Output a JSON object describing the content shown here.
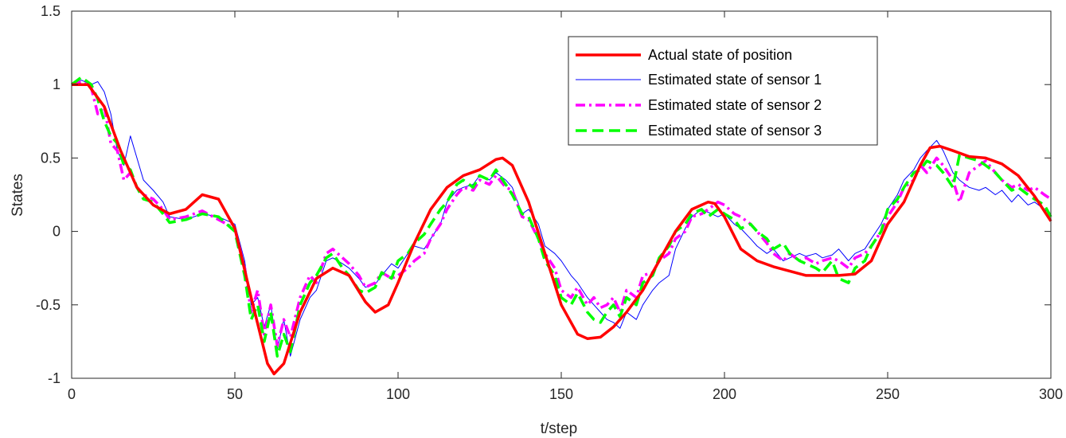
{
  "chart_data": {
    "type": "line",
    "title": "",
    "xlabel": "t/step",
    "ylabel": "States",
    "xlim": [
      0,
      300
    ],
    "ylim": [
      -1,
      1.5
    ],
    "xticks": [
      0,
      50,
      100,
      150,
      200,
      250,
      300
    ],
    "xtick_labels": [
      "0",
      "50",
      "100",
      "150",
      "200",
      "250",
      "300"
    ],
    "yticks": [
      -1,
      -0.5,
      0,
      0.5,
      1,
      1.5
    ],
    "ytick_labels": [
      "-1",
      "-0.5",
      "0",
      "0.5",
      "1",
      "1.5"
    ],
    "grid": false,
    "legend_position": "top-right",
    "series": [
      {
        "name": "Actual state of position",
        "color": "#ff0000",
        "style": "solid-thick",
        "x": [
          0,
          5,
          10,
          15,
          20,
          25,
          30,
          35,
          40,
          45,
          50,
          55,
          60,
          62,
          65,
          70,
          75,
          80,
          85,
          90,
          93,
          97,
          100,
          105,
          110,
          115,
          120,
          125,
          130,
          132,
          135,
          140,
          145,
          150,
          155,
          158,
          162,
          166,
          170,
          175,
          180,
          185,
          190,
          195,
          197,
          200,
          205,
          210,
          215,
          220,
          225,
          230,
          235,
          240,
          245,
          250,
          255,
          260,
          263,
          266,
          270,
          275,
          280,
          285,
          290,
          295,
          300
        ],
        "values": [
          1.0,
          1.0,
          0.85,
          0.55,
          0.3,
          0.18,
          0.12,
          0.15,
          0.25,
          0.22,
          0.02,
          -0.45,
          -0.9,
          -0.97,
          -0.9,
          -0.55,
          -0.32,
          -0.25,
          -0.3,
          -0.48,
          -0.55,
          -0.5,
          -0.35,
          -0.08,
          0.15,
          0.3,
          0.38,
          0.42,
          0.49,
          0.5,
          0.45,
          0.2,
          -0.15,
          -0.5,
          -0.7,
          -0.73,
          -0.72,
          -0.65,
          -0.55,
          -0.4,
          -0.2,
          0.0,
          0.15,
          0.2,
          0.19,
          0.1,
          -0.12,
          -0.2,
          -0.24,
          -0.27,
          -0.3,
          -0.3,
          -0.3,
          -0.29,
          -0.2,
          0.05,
          0.2,
          0.45,
          0.57,
          0.58,
          0.55,
          0.51,
          0.5,
          0.46,
          0.38,
          0.24,
          0.07
        ]
      },
      {
        "name": "Estimated state of sensor 1",
        "color": "#0000ff",
        "style": "solid-thin",
        "x": [
          0,
          3,
          6,
          8,
          10,
          12,
          14,
          16,
          18,
          20,
          22,
          25,
          28,
          30,
          35,
          40,
          45,
          50,
          53,
          55,
          57,
          59,
          61,
          63,
          65,
          67,
          70,
          73,
          75,
          78,
          80,
          83,
          85,
          88,
          90,
          93,
          95,
          98,
          100,
          103,
          105,
          108,
          110,
          113,
          115,
          118,
          120,
          123,
          125,
          128,
          130,
          133,
          135,
          138,
          140,
          143,
          145,
          148,
          150,
          153,
          155,
          158,
          160,
          162,
          164,
          166,
          168,
          170,
          173,
          175,
          178,
          180,
          183,
          185,
          188,
          190,
          193,
          195,
          198,
          200,
          203,
          205,
          208,
          210,
          213,
          215,
          218,
          220,
          223,
          225,
          228,
          230,
          233,
          235,
          238,
          240,
          243,
          245,
          248,
          250,
          253,
          255,
          258,
          260,
          262,
          265,
          267,
          270,
          272,
          275,
          278,
          280,
          283,
          285,
          288,
          290,
          293,
          295,
          298,
          300
        ],
        "values": [
          1.0,
          1.03,
          1.0,
          1.02,
          0.95,
          0.8,
          0.55,
          0.45,
          0.65,
          0.5,
          0.35,
          0.28,
          0.2,
          0.1,
          0.08,
          0.12,
          0.1,
          0.05,
          -0.2,
          -0.5,
          -0.45,
          -0.65,
          -0.5,
          -0.8,
          -0.6,
          -0.85,
          -0.6,
          -0.45,
          -0.4,
          -0.2,
          -0.18,
          -0.22,
          -0.25,
          -0.32,
          -0.38,
          -0.36,
          -0.3,
          -0.22,
          -0.25,
          -0.15,
          -0.1,
          -0.12,
          -0.05,
          0.05,
          0.2,
          0.28,
          0.3,
          0.32,
          0.38,
          0.35,
          0.4,
          0.35,
          0.3,
          0.12,
          0.15,
          0.05,
          -0.1,
          -0.15,
          -0.2,
          -0.3,
          -0.35,
          -0.45,
          -0.5,
          -0.55,
          -0.6,
          -0.62,
          -0.66,
          -0.55,
          -0.6,
          -0.5,
          -0.4,
          -0.35,
          -0.3,
          -0.12,
          0.02,
          0.1,
          0.15,
          0.13,
          0.1,
          0.12,
          0.05,
          0.02,
          -0.05,
          -0.1,
          -0.15,
          -0.12,
          -0.2,
          -0.18,
          -0.15,
          -0.17,
          -0.15,
          -0.18,
          -0.16,
          -0.12,
          -0.2,
          -0.15,
          -0.12,
          -0.05,
          0.05,
          0.15,
          0.25,
          0.35,
          0.42,
          0.5,
          0.55,
          0.62,
          0.55,
          0.4,
          0.35,
          0.3,
          0.28,
          0.3,
          0.25,
          0.28,
          0.2,
          0.25,
          0.18,
          0.2,
          0.15,
          0.12
        ]
      },
      {
        "name": "Estimated state of sensor 2",
        "color": "#ff00ff",
        "style": "dash-dot",
        "x": [
          0,
          3,
          6,
          8,
          10,
          12,
          14,
          16,
          18,
          20,
          22,
          25,
          28,
          30,
          35,
          40,
          45,
          50,
          53,
          55,
          57,
          59,
          61,
          63,
          65,
          67,
          70,
          73,
          75,
          78,
          80,
          83,
          85,
          88,
          90,
          93,
          95,
          98,
          100,
          103,
          105,
          108,
          110,
          113,
          115,
          118,
          120,
          123,
          125,
          128,
          130,
          133,
          135,
          138,
          140,
          143,
          145,
          148,
          150,
          153,
          155,
          158,
          160,
          162,
          164,
          166,
          168,
          170,
          173,
          175,
          178,
          180,
          183,
          185,
          188,
          190,
          193,
          195,
          198,
          200,
          203,
          205,
          208,
          210,
          213,
          215,
          218,
          220,
          223,
          225,
          228,
          230,
          233,
          235,
          238,
          240,
          243,
          245,
          248,
          250,
          253,
          255,
          258,
          260,
          262,
          265,
          267,
          270,
          272,
          275,
          278,
          280,
          283,
          285,
          288,
          290,
          293,
          295,
          298,
          300
        ],
        "values": [
          1.0,
          1.02,
          0.98,
          0.8,
          0.85,
          0.6,
          0.55,
          0.35,
          0.4,
          0.3,
          0.25,
          0.22,
          0.15,
          0.08,
          0.1,
          0.14,
          0.08,
          0.02,
          -0.25,
          -0.55,
          -0.4,
          -0.7,
          -0.5,
          -0.78,
          -0.6,
          -0.72,
          -0.45,
          -0.3,
          -0.35,
          -0.15,
          -0.12,
          -0.18,
          -0.22,
          -0.3,
          -0.38,
          -0.35,
          -0.28,
          -0.32,
          -0.3,
          -0.25,
          -0.2,
          -0.15,
          -0.05,
          0.05,
          0.15,
          0.25,
          0.3,
          0.28,
          0.35,
          0.32,
          0.38,
          0.3,
          0.28,
          0.1,
          0.08,
          -0.05,
          -0.15,
          -0.25,
          -0.4,
          -0.45,
          -0.38,
          -0.5,
          -0.45,
          -0.52,
          -0.5,
          -0.45,
          -0.55,
          -0.4,
          -0.45,
          -0.3,
          -0.28,
          -0.2,
          -0.15,
          -0.05,
          0.0,
          0.1,
          0.12,
          0.15,
          0.2,
          0.18,
          0.12,
          0.1,
          0.05,
          0.0,
          -0.08,
          -0.15,
          -0.2,
          -0.15,
          -0.2,
          -0.18,
          -0.22,
          -0.2,
          -0.18,
          -0.2,
          -0.25,
          -0.18,
          -0.15,
          -0.1,
          0.0,
          0.1,
          0.2,
          0.3,
          0.35,
          0.45,
          0.4,
          0.5,
          0.45,
          0.35,
          0.2,
          0.4,
          0.45,
          0.48,
          0.4,
          0.35,
          0.3,
          0.32,
          0.28,
          0.3,
          0.25,
          0.22
        ]
      },
      {
        "name": "Estimated state of sensor 3",
        "color": "#00ff00",
        "style": "dash",
        "x": [
          0,
          3,
          6,
          8,
          10,
          12,
          14,
          16,
          18,
          20,
          22,
          25,
          28,
          30,
          35,
          40,
          45,
          50,
          53,
          55,
          57,
          59,
          61,
          63,
          65,
          67,
          70,
          73,
          75,
          78,
          80,
          83,
          85,
          88,
          90,
          93,
          95,
          98,
          100,
          103,
          105,
          108,
          110,
          113,
          115,
          118,
          120,
          123,
          125,
          128,
          130,
          133,
          135,
          138,
          140,
          143,
          145,
          148,
          150,
          153,
          155,
          158,
          160,
          162,
          164,
          166,
          168,
          170,
          173,
          175,
          178,
          180,
          183,
          185,
          188,
          190,
          193,
          195,
          198,
          200,
          203,
          205,
          208,
          210,
          213,
          215,
          218,
          220,
          223,
          225,
          228,
          230,
          233,
          235,
          238,
          240,
          243,
          245,
          248,
          250,
          253,
          255,
          258,
          260,
          262,
          265,
          267,
          270,
          272,
          275,
          278,
          280,
          283,
          285,
          288,
          290,
          293,
          295,
          298,
          300
        ],
        "values": [
          1.0,
          1.05,
          1.0,
          0.9,
          0.75,
          0.65,
          0.6,
          0.45,
          0.42,
          0.3,
          0.22,
          0.2,
          0.12,
          0.06,
          0.08,
          0.12,
          0.1,
          0.0,
          -0.3,
          -0.6,
          -0.5,
          -0.75,
          -0.55,
          -0.85,
          -0.7,
          -0.82,
          -0.5,
          -0.35,
          -0.3,
          -0.18,
          -0.15,
          -0.25,
          -0.3,
          -0.4,
          -0.42,
          -0.38,
          -0.28,
          -0.32,
          -0.2,
          -0.15,
          -0.08,
          -0.02,
          0.05,
          0.15,
          0.2,
          0.32,
          0.35,
          0.3,
          0.38,
          0.35,
          0.42,
          0.32,
          0.25,
          0.12,
          0.1,
          -0.05,
          -0.2,
          -0.3,
          -0.45,
          -0.5,
          -0.42,
          -0.55,
          -0.6,
          -0.62,
          -0.55,
          -0.5,
          -0.58,
          -0.45,
          -0.5,
          -0.35,
          -0.3,
          -0.18,
          -0.1,
          0.0,
          0.05,
          0.12,
          0.15,
          0.1,
          0.15,
          0.12,
          0.08,
          0.02,
          0.05,
          0.0,
          -0.05,
          -0.12,
          -0.08,
          -0.15,
          -0.2,
          -0.22,
          -0.25,
          -0.28,
          -0.2,
          -0.32,
          -0.35,
          -0.25,
          -0.2,
          -0.1,
          0.0,
          0.15,
          0.22,
          0.3,
          0.4,
          0.42,
          0.48,
          0.45,
          0.4,
          0.3,
          0.52,
          0.5,
          0.48,
          0.45,
          0.4,
          0.35,
          0.28,
          0.3,
          0.25,
          0.22,
          0.18,
          0.1
        ]
      }
    ]
  }
}
